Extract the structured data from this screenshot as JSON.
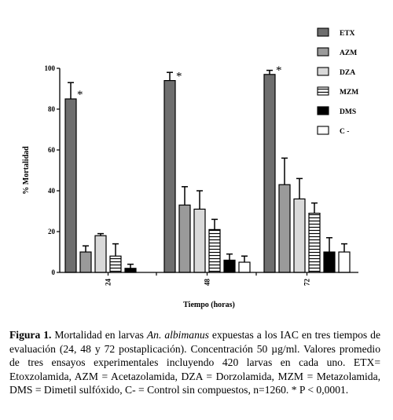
{
  "chart_data": {
    "type": "bar",
    "ylabel": "% Mortalidad",
    "xlabel": "Tiempo (horas)",
    "ylim": [
      0,
      100
    ],
    "yticks": [
      "0",
      "20",
      "40",
      "60",
      "80",
      "100"
    ],
    "categories": [
      "24",
      "48",
      "72"
    ],
    "legend_position": "top-right",
    "significance_marker": "*",
    "series": [
      {
        "name": "ETX",
        "pattern": "dark-gray",
        "values": [
          85,
          94,
          97
        ],
        "errors": [
          8,
          4,
          2
        ],
        "significant": [
          true,
          true,
          true
        ]
      },
      {
        "name": "AZM",
        "pattern": "gray",
        "values": [
          10,
          33,
          43
        ],
        "errors": [
          3,
          9,
          13
        ],
        "significant": [
          false,
          false,
          false
        ]
      },
      {
        "name": "DZA",
        "pattern": "light-gray",
        "values": [
          18,
          31,
          36
        ],
        "errors": [
          1,
          9,
          10
        ],
        "significant": [
          false,
          false,
          false
        ]
      },
      {
        "name": "MZM",
        "pattern": "horizontal-lines",
        "values": [
          8,
          21,
          29
        ],
        "errors": [
          6,
          5,
          5
        ],
        "significant": [
          false,
          false,
          false
        ]
      },
      {
        "name": "DMS",
        "pattern": "black",
        "values": [
          2,
          6,
          10
        ],
        "errors": [
          2,
          3,
          7
        ],
        "significant": [
          false,
          false,
          false
        ]
      },
      {
        "name": "C -",
        "pattern": "white",
        "values": [
          0,
          5,
          10
        ],
        "errors": [
          0,
          3,
          4
        ],
        "significant": [
          false,
          false,
          false
        ]
      }
    ]
  },
  "caption": {
    "label": "Figura 1.",
    "part1": " Mortalidad en larvas ",
    "species": "An. albimanus",
    "part2": " expuestas a los IAC en tres tiempos de evaluación (24, 48 y 72 postaplicación). Concentración 50 µg/ml. Valores promedio de tres ensayos experimentales incluyendo 420 larvas en cada uno. ETX= Etoxzolamida, AZM = Acetazolamida, DZA = Dorzolamida, MZM = Metazolamida, DMS = Dimetil sulfóxido, C- = Control sin compuestos, n=1260. * P < 0,0001."
  }
}
